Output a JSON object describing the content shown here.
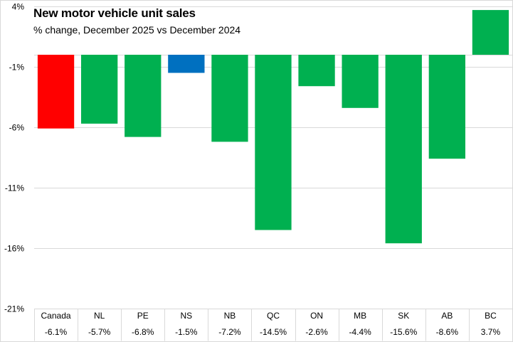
{
  "chart_data": {
    "type": "bar",
    "title": "New motor vehicle unit sales",
    "subtitle": "% change, December 2025 vs December 2024",
    "xlabel": "",
    "ylabel": "",
    "categories": [
      "Canada",
      "NL",
      "PE",
      "NS",
      "NB",
      "QC",
      "ON",
      "MB",
      "SK",
      "AB",
      "BC"
    ],
    "values": [
      -6.1,
      -5.7,
      -6.8,
      -1.5,
      -7.2,
      -14.5,
      -2.6,
      -4.4,
      -15.6,
      -8.6,
      3.7
    ],
    "value_labels": [
      "-6.1%",
      "-5.7%",
      "-6.8%",
      "-1.5%",
      "-7.2%",
      "-14.5%",
      "-2.6%",
      "-4.4%",
      "-15.6%",
      "-8.6%",
      "3.7%"
    ],
    "bar_colors": [
      "#ff0000",
      "#00b050",
      "#00b050",
      "#0070c0",
      "#00b050",
      "#00b050",
      "#00b050",
      "#00b050",
      "#00b050",
      "#00b050",
      "#00b050"
    ],
    "ylim": [
      -21,
      4
    ],
    "yticks": [
      4,
      -1,
      -6,
      -11,
      -16,
      -21
    ],
    "ytick_labels": [
      "4%",
      "-1%",
      "-6%",
      "-11%",
      "-16%",
      "-21%"
    ],
    "grid": true,
    "data_table": true,
    "legend": "none"
  }
}
